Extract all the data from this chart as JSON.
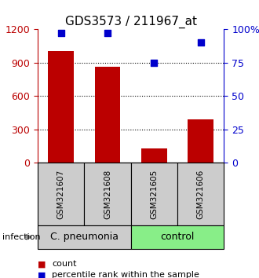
{
  "title": "GDS3573 / 211967_at",
  "categories": [
    "GSM321607",
    "GSM321608",
    "GSM321605",
    "GSM321606"
  ],
  "counts": [
    1000,
    860,
    130,
    390
  ],
  "percentiles": [
    97,
    97,
    75,
    90
  ],
  "bar_color": "#bb0000",
  "dot_color": "#0000cc",
  "ylim_left": [
    0,
    1200
  ],
  "ylim_right": [
    0,
    100
  ],
  "yticks_left": [
    0,
    300,
    600,
    900,
    1200
  ],
  "yticks_right": [
    0,
    25,
    50,
    75,
    100
  ],
  "ytick_labels_right": [
    "0",
    "25",
    "50",
    "75",
    "100%"
  ],
  "group_labels": [
    "C. pneumonia",
    "control"
  ],
  "group_colors": [
    "#cccccc",
    "#88ee88"
  ],
  "group_ranges": [
    [
      0,
      2
    ],
    [
      2,
      4
    ]
  ],
  "infection_label": "infection",
  "legend_items": [
    "count",
    "percentile rank within the sample"
  ],
  "legend_colors": [
    "#bb0000",
    "#0000cc"
  ],
  "background_color": "#ffffff",
  "title_fontsize": 11,
  "tick_fontsize": 9,
  "label_fontsize": 8,
  "group_fontsize": 9
}
